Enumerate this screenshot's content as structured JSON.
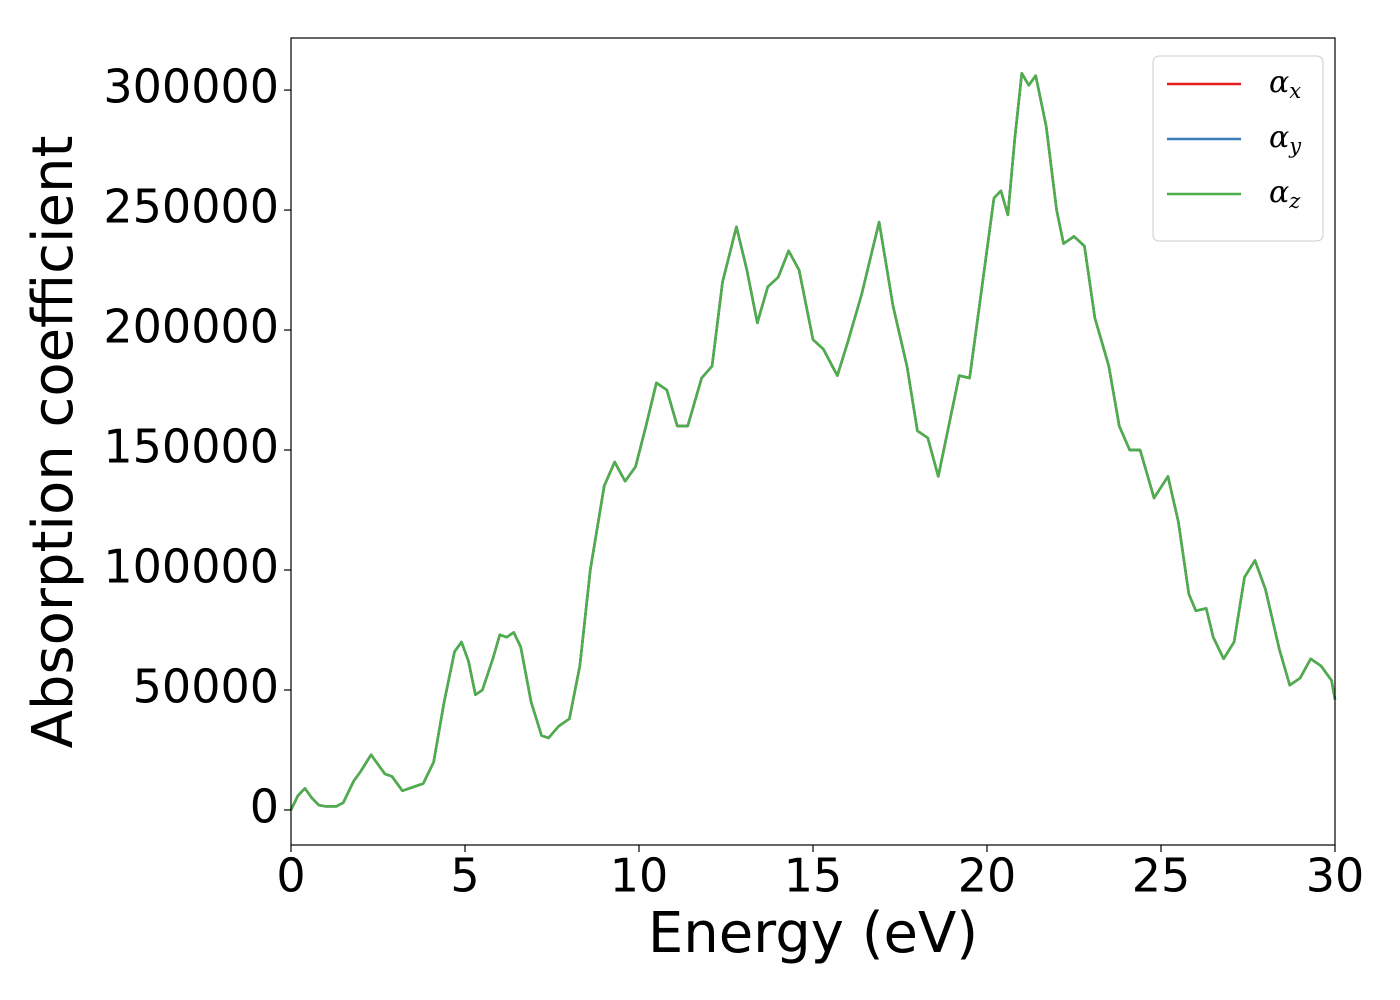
{
  "chart_data": {
    "type": "line",
    "x_label": "Energy (eV)",
    "y_label": "Absorption coefficient",
    "x": [
      0,
      0.2,
      0.4,
      0.6,
      0.8,
      1.0,
      1.3,
      1.5,
      1.8,
      2.0,
      2.3,
      2.5,
      2.7,
      2.9,
      3.2,
      3.5,
      3.8,
      4.1,
      4.4,
      4.7,
      4.9,
      5.1,
      5.3,
      5.5,
      5.8,
      6.0,
      6.2,
      6.4,
      6.6,
      6.9,
      7.2,
      7.4,
      7.7,
      8.0,
      8.3,
      8.6,
      9.0,
      9.3,
      9.6,
      9.9,
      10.2,
      10.5,
      10.8,
      11.1,
      11.4,
      11.8,
      12.1,
      12.4,
      12.8,
      13.1,
      13.4,
      13.7,
      14.0,
      14.3,
      14.6,
      15.0,
      15.3,
      15.7,
      16.0,
      16.4,
      16.9,
      17.3,
      17.7,
      18.0,
      18.3,
      18.6,
      18.9,
      19.2,
      19.5,
      19.8,
      20.2,
      20.4,
      20.6,
      20.8,
      21.0,
      21.2,
      21.4,
      21.7,
      22.0,
      22.2,
      22.5,
      22.8,
      23.1,
      23.5,
      23.8,
      24.1,
      24.4,
      24.8,
      25.2,
      25.5,
      25.8,
      26.0,
      26.3,
      26.5,
      26.8,
      27.1,
      27.4,
      27.7,
      28.0,
      28.4,
      28.7,
      29.0,
      29.3,
      29.6,
      29.9,
      30.0
    ],
    "series": [
      {
        "name": "αx",
        "color": "#e41a1c",
        "values": [
          0,
          6000,
          9000,
          5000,
          2000,
          1500,
          1500,
          3000,
          12000,
          16000,
          23000,
          19000,
          15000,
          14000,
          8000,
          9500,
          11000,
          20000,
          45000,
          66000,
          70000,
          62000,
          48000,
          50000,
          63000,
          73000,
          72000,
          74000,
          68000,
          45000,
          31000,
          30000,
          35000,
          38000,
          60000,
          100000,
          135000,
          145000,
          137000,
          143000,
          160000,
          178000,
          175000,
          160000,
          160000,
          180000,
          185000,
          220000,
          243000,
          225000,
          203000,
          218000,
          222000,
          233000,
          225000,
          196000,
          192000,
          181000,
          195000,
          215000,
          245000,
          210000,
          185000,
          158000,
          155000,
          139000,
          160000,
          181000,
          180000,
          212000,
          255000,
          258000,
          248000,
          280000,
          307000,
          302000,
          306000,
          285000,
          250000,
          236000,
          239000,
          235000,
          205000,
          185000,
          160000,
          150000,
          150000,
          130000,
          139000,
          120000,
          90000,
          83000,
          84000,
          72000,
          63000,
          70000,
          97000,
          104000,
          92000,
          67000,
          52000,
          55000,
          63000,
          60000,
          54000,
          46000
        ]
      },
      {
        "name": "αy",
        "color": "#377eb8",
        "values": [
          0,
          6000,
          9000,
          5000,
          2000,
          1500,
          1500,
          3000,
          12000,
          16000,
          23000,
          19000,
          15000,
          14000,
          8000,
          9500,
          11000,
          20000,
          45000,
          66000,
          70000,
          62000,
          48000,
          50000,
          63000,
          73000,
          72000,
          74000,
          68000,
          45000,
          31000,
          30000,
          35000,
          38000,
          60000,
          100000,
          135000,
          145000,
          137000,
          143000,
          160000,
          178000,
          175000,
          160000,
          160000,
          180000,
          185000,
          220000,
          243000,
          225000,
          203000,
          218000,
          222000,
          233000,
          225000,
          196000,
          192000,
          181000,
          195000,
          215000,
          245000,
          210000,
          185000,
          158000,
          155000,
          139000,
          160000,
          181000,
          180000,
          212000,
          255000,
          258000,
          248000,
          280000,
          307000,
          302000,
          306000,
          285000,
          250000,
          236000,
          239000,
          235000,
          205000,
          185000,
          160000,
          150000,
          150000,
          130000,
          139000,
          120000,
          90000,
          83000,
          84000,
          72000,
          63000,
          70000,
          97000,
          104000,
          92000,
          67000,
          52000,
          55000,
          63000,
          60000,
          54000,
          46000
        ]
      },
      {
        "name": "αz",
        "color": "#4daf4a",
        "values": [
          0,
          6000,
          9000,
          5000,
          2000,
          1500,
          1500,
          3000,
          12000,
          16000,
          23000,
          19000,
          15000,
          14000,
          8000,
          9500,
          11000,
          20000,
          45000,
          66000,
          70000,
          62000,
          48000,
          50000,
          63000,
          73000,
          72000,
          74000,
          68000,
          45000,
          31000,
          30000,
          35000,
          38000,
          60000,
          100000,
          135000,
          145000,
          137000,
          143000,
          160000,
          178000,
          175000,
          160000,
          160000,
          180000,
          185000,
          220000,
          243000,
          225000,
          203000,
          218000,
          222000,
          233000,
          225000,
          196000,
          192000,
          181000,
          195000,
          215000,
          245000,
          210000,
          185000,
          158000,
          155000,
          139000,
          160000,
          181000,
          180000,
          212000,
          255000,
          258000,
          248000,
          280000,
          307000,
          302000,
          306000,
          285000,
          250000,
          236000,
          239000,
          235000,
          205000,
          185000,
          160000,
          150000,
          150000,
          130000,
          139000,
          120000,
          90000,
          83000,
          84000,
          72000,
          63000,
          70000,
          97000,
          104000,
          92000,
          67000,
          52000,
          55000,
          63000,
          60000,
          54000,
          46000
        ]
      }
    ],
    "xlim": [
      0,
      30
    ],
    "xticks": [
      0,
      5,
      10,
      15,
      20,
      25,
      30
    ],
    "ylim": [
      -14600,
      321700
    ],
    "yticks": [
      0,
      50000,
      100000,
      150000,
      200000,
      250000,
      300000
    ],
    "grid": false,
    "legend": "upper right"
  }
}
